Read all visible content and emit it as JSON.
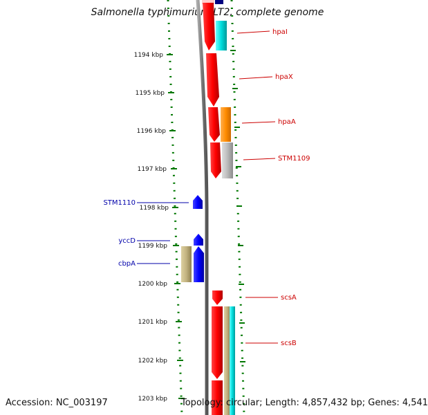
{
  "title": "Salmonella typhimurium LT2, complete genome",
  "footer": {
    "accession": "Accession: NC_003197",
    "topology": "Topology: circular; Length: 4,857,432 bp; Genes: 4,541"
  },
  "ruler": {
    "ticks": [
      {
        "kbp": 1194,
        "label": "1194 kbp"
      },
      {
        "kbp": 1195,
        "label": "1195 kbp"
      },
      {
        "kbp": 1196,
        "label": "1196 kbp"
      },
      {
        "kbp": 1197,
        "label": "1197 kbp"
      },
      {
        "kbp": 1198,
        "label": "1198 kbp"
      },
      {
        "kbp": 1199,
        "label": "1199 kbp"
      },
      {
        "kbp": 1200,
        "label": "1200 kbp"
      },
      {
        "kbp": 1201,
        "label": "1201 kbp"
      },
      {
        "kbp": 1202,
        "label": "1202 kbp"
      },
      {
        "kbp": 1203,
        "label": "1203 kbp"
      }
    ]
  },
  "genes": [
    {
      "name": "hpaI",
      "strand": "forward",
      "color": "#cc0000"
    },
    {
      "name": "hpaX",
      "strand": "forward",
      "color": "#cc0000"
    },
    {
      "name": "hpaA",
      "strand": "forward",
      "color": "#cc0000"
    },
    {
      "name": "STM1109",
      "strand": "forward",
      "color": "#cc0000"
    },
    {
      "name": "STM1110",
      "strand": "reverse",
      "color": "#0000aa"
    },
    {
      "name": "yccD",
      "strand": "reverse",
      "color": "#0000aa"
    },
    {
      "name": "cbpA",
      "strand": "reverse",
      "color": "#0000aa"
    },
    {
      "name": "scsA",
      "strand": "forward",
      "color": "#cc0000"
    },
    {
      "name": "scsB",
      "strand": "forward",
      "color": "#cc0000"
    }
  ],
  "colors": {
    "forward_gene": "#ff0000",
    "reverse_gene": "#0000ff",
    "backbone": "#808080",
    "ruler_dots": "#007700",
    "cyan_feature": "#00cccc",
    "orange_feature": "#ff8c00",
    "gray_feature": "#b8b8b8",
    "tan_feature": "#c2b280"
  }
}
